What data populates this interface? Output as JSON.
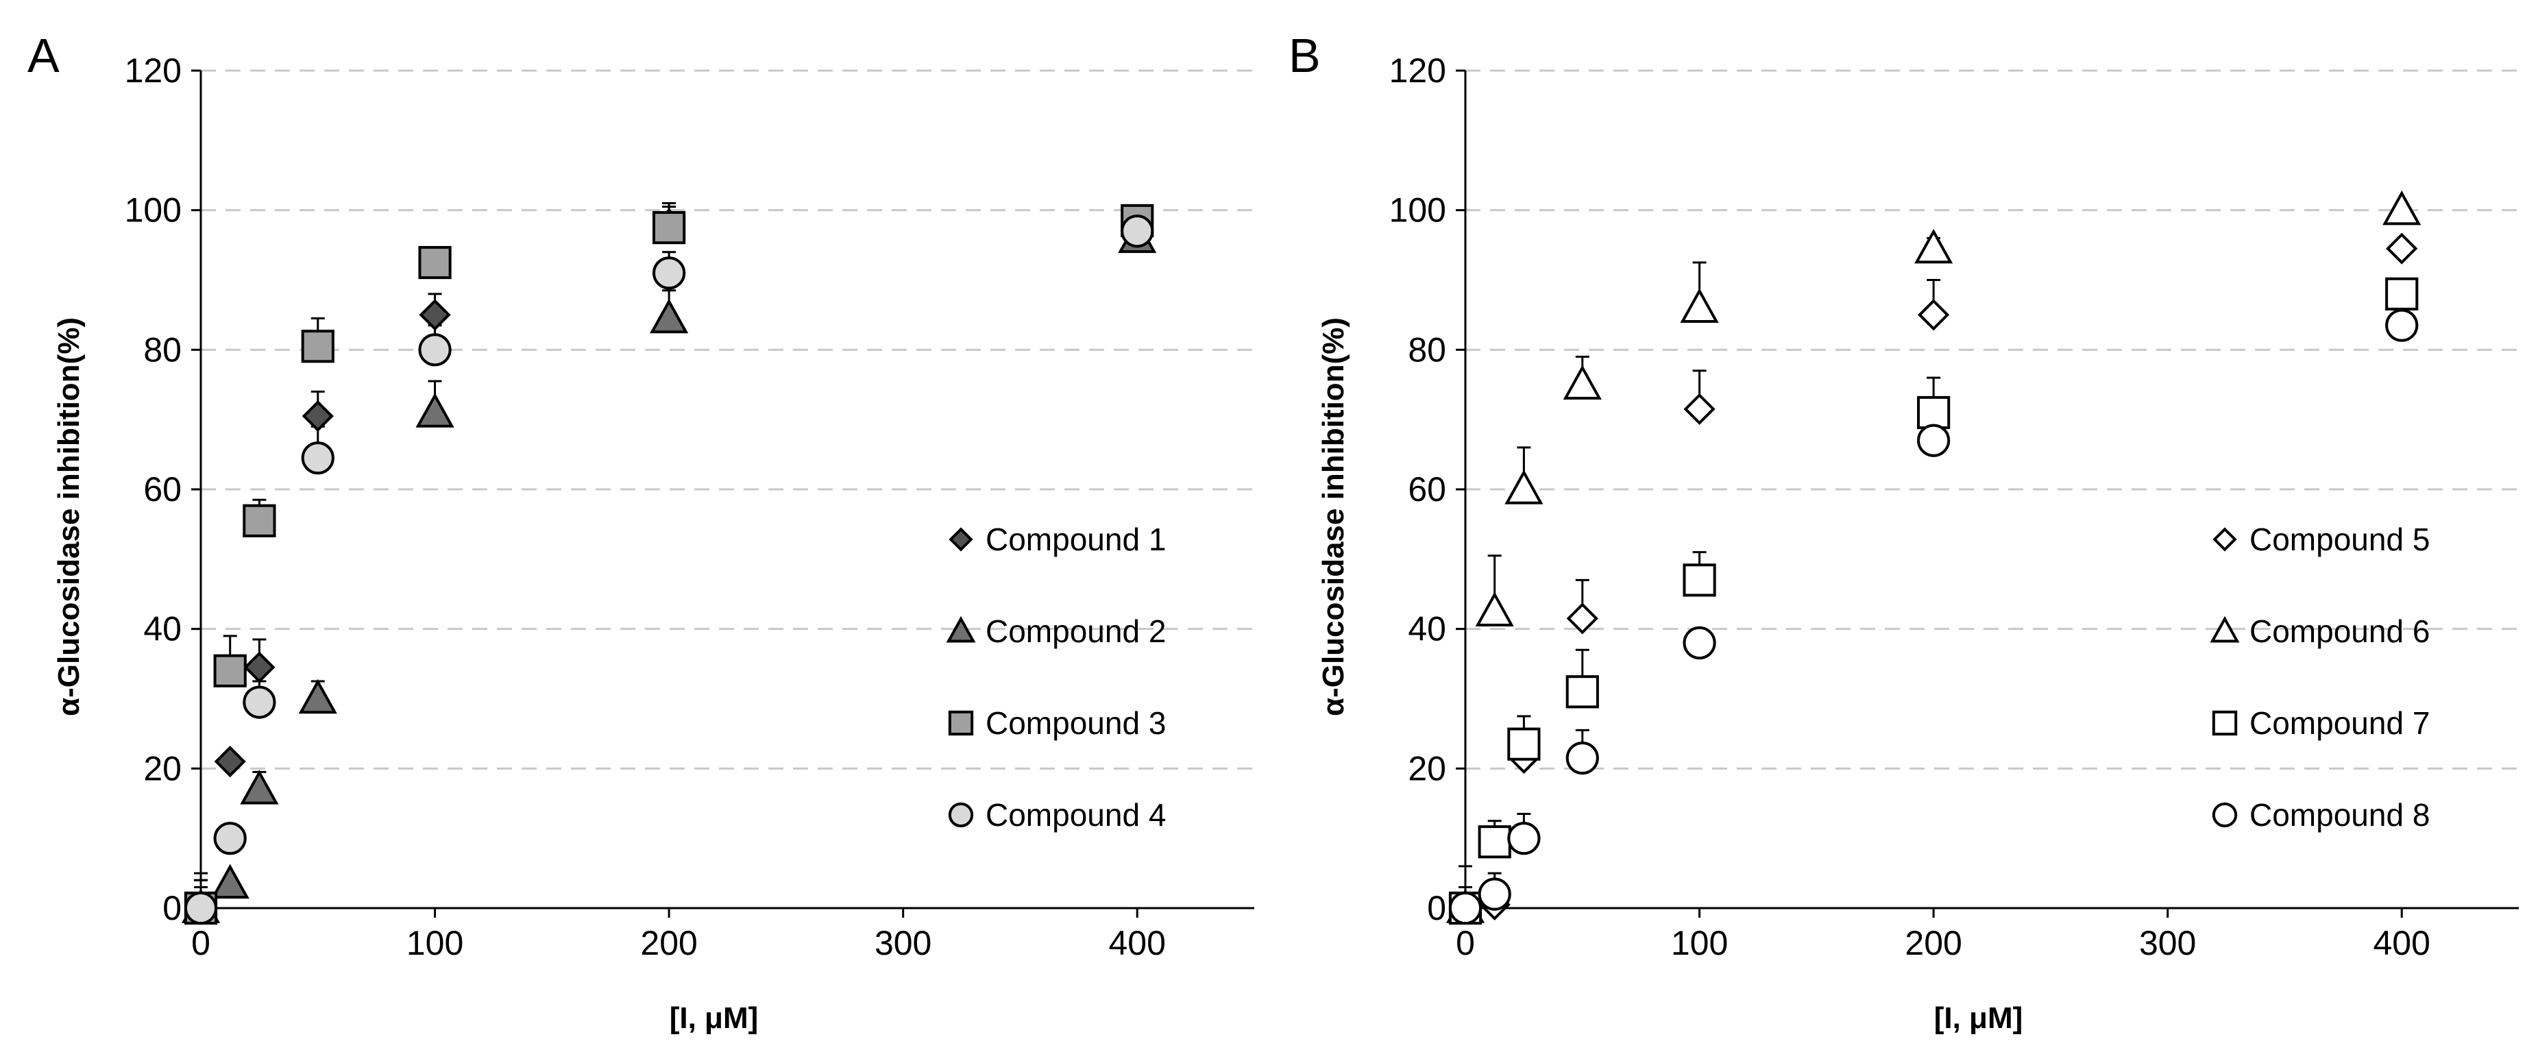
{
  "chart_data": [
    {
      "type": "scatter",
      "panel_label": "A",
      "xlabel": "[I, μM]",
      "ylabel": "α-Glucosidase inhibition(%)",
      "xlim": [
        0,
        450
      ],
      "ylim": [
        0,
        120
      ],
      "xticks": [
        "0",
        "100",
        "200",
        "300",
        "400"
      ],
      "yticks": [
        "0",
        "20",
        "40",
        "60",
        "80",
        "100",
        "120"
      ],
      "grid": "horizontal dashed",
      "legend_position": "right",
      "series": [
        {
          "name": "Compound 1",
          "marker": "diamond",
          "fill": "#505050",
          "x": [
            0,
            12.5,
            25,
            50,
            100,
            200,
            400
          ],
          "y": [
            0,
            21,
            34.5,
            70.5,
            85,
            98,
            97
          ],
          "err": [
            5,
            0,
            4,
            3.5,
            3,
            3,
            1.5
          ]
        },
        {
          "name": "Compound 2",
          "marker": "triangle",
          "fill": "#707070",
          "x": [
            0,
            12.5,
            25,
            50,
            100,
            200,
            400
          ],
          "y": [
            0,
            3.5,
            17,
            30,
            71,
            84.5,
            96
          ],
          "err": [
            3,
            0,
            2.5,
            2.5,
            4.5,
            4,
            1
          ]
        },
        {
          "name": "Compound 3",
          "marker": "square",
          "fill": "#a0a0a0",
          "x": [
            0,
            12.5,
            25,
            50,
            100,
            200,
            400
          ],
          "y": [
            0,
            34,
            55.5,
            80.5,
            92.5,
            97.5,
            98.5
          ],
          "err": [
            4,
            5,
            3,
            4,
            0,
            3,
            1
          ]
        },
        {
          "name": "Compound 4",
          "marker": "circle",
          "fill": "#d9d9d9",
          "x": [
            0,
            12.5,
            25,
            50,
            100,
            200,
            400
          ],
          "y": [
            0,
            10,
            29.5,
            64.5,
            80,
            91,
            97
          ],
          "err": [
            4,
            0,
            3,
            4.5,
            3.5,
            3,
            0
          ]
        }
      ]
    },
    {
      "type": "scatter",
      "panel_label": "B",
      "xlabel": "[I, μM]",
      "ylabel": "α-Glucosidase inhibition(%)",
      "xlim": [
        0,
        450
      ],
      "ylim": [
        0,
        120
      ],
      "xticks": [
        "0",
        "100",
        "200",
        "300",
        "400"
      ],
      "yticks": [
        "0",
        "20",
        "40",
        "60",
        "80",
        "100",
        "120"
      ],
      "grid": "horizontal dashed",
      "legend_position": "right",
      "series": [
        {
          "name": "Compound 5",
          "marker": "diamond",
          "fill": "none",
          "x": [
            0,
            12.5,
            25,
            50,
            100,
            200,
            400
          ],
          "y": [
            0,
            0.5,
            21.5,
            41.5,
            71.5,
            85,
            94.5
          ],
          "err": [
            3,
            2,
            3,
            5.5,
            5.5,
            5,
            0
          ]
        },
        {
          "name": "Compound 6",
          "marker": "triangle",
          "fill": "none",
          "x": [
            0,
            12.5,
            25,
            50,
            100,
            200,
            400
          ],
          "y": [
            0,
            42.5,
            60,
            75,
            86,
            94.5,
            100
          ],
          "err": [
            3,
            8,
            6,
            4,
            6.5,
            1.5,
            0
          ]
        },
        {
          "name": "Compound 7",
          "marker": "square",
          "fill": "none",
          "x": [
            0,
            12.5,
            25,
            50,
            100,
            200,
            400
          ],
          "y": [
            0,
            9.5,
            23.5,
            31,
            47,
            71,
            88
          ],
          "err": [
            6,
            3,
            4,
            6,
            4,
            5,
            0
          ]
        },
        {
          "name": "Compound 8",
          "marker": "circle",
          "fill": "none",
          "x": [
            0,
            12.5,
            25,
            50,
            100,
            200,
            400
          ],
          "y": [
            0,
            2,
            10,
            21.5,
            38,
            67,
            83.5
          ],
          "err": [
            3,
            3,
            3.5,
            4,
            2,
            6,
            0
          ]
        }
      ]
    }
  ]
}
